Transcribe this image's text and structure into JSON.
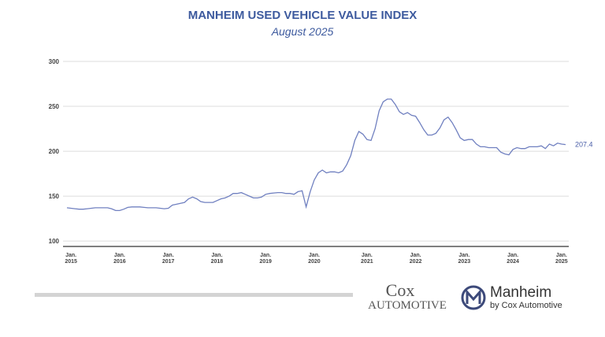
{
  "chart_data": {
    "type": "line",
    "title": "MANHEIM USED VEHICLE VALUE INDEX",
    "subtitle": "August 2025",
    "color": "#7080c0",
    "grid": true,
    "categories": [
      null,
      "Jan. 2015",
      null,
      null,
      null,
      null,
      null,
      null,
      null,
      null,
      null,
      null,
      null,
      "Jan. 2016",
      null,
      null,
      null,
      null,
      null,
      null,
      null,
      null,
      null,
      null,
      null,
      "Jan. 2017",
      null,
      null,
      null,
      null,
      null,
      null,
      null,
      null,
      null,
      null,
      null,
      "Jan. 2018",
      null,
      null,
      null,
      null,
      null,
      null,
      null,
      null,
      null,
      null,
      null,
      "Jan. 2019",
      null,
      null,
      null,
      null,
      null,
      null,
      null,
      null,
      null,
      null,
      null,
      "Jan. 2020",
      null,
      null,
      null,
      null,
      null,
      null,
      null,
      null,
      null,
      null,
      null,
      null,
      "Jan. 2021",
      null,
      null,
      null,
      null,
      null,
      null,
      null,
      null,
      null,
      null,
      null,
      "Jan. 2022",
      null,
      null,
      null,
      null,
      null,
      null,
      null,
      null,
      null,
      null,
      null,
      "Jan. 2023",
      null,
      null,
      null,
      null,
      null,
      null,
      null,
      null,
      null,
      null,
      null,
      "Jan. 2024",
      null,
      null,
      null,
      null,
      null,
      null,
      null,
      null,
      null,
      null,
      null,
      "Jan. 2025",
      null
    ],
    "values": [
      137,
      136.5,
      136,
      135.5,
      135.5,
      136,
      136.5,
      137,
      137,
      137,
      137,
      136,
      134,
      134,
      135.5,
      137.5,
      138,
      138,
      138,
      137.5,
      137,
      137,
      137,
      136.5,
      136,
      136.5,
      140,
      141,
      142,
      143,
      147,
      149,
      147,
      144,
      143,
      143,
      143,
      145,
      147,
      148,
      150,
      153,
      153,
      154,
      152,
      150,
      148,
      148,
      149,
      152,
      153,
      153.5,
      154,
      154,
      153,
      153,
      152,
      155,
      156,
      138,
      155,
      168,
      176,
      179,
      176,
      177,
      177,
      176,
      178,
      185,
      195,
      212,
      222,
      219,
      213,
      212,
      225,
      245,
      255,
      258,
      258,
      252,
      244,
      241,
      243,
      240,
      239,
      232,
      224,
      218,
      218,
      220,
      226,
      235,
      238,
      232,
      224,
      215,
      212,
      213,
      213,
      208,
      205,
      205,
      204,
      204,
      204,
      199,
      197,
      196,
      202,
      204,
      203,
      203,
      205,
      205,
      205,
      206,
      203,
      208,
      206,
      209,
      208,
      207.4
    ],
    "ylim": [
      94,
      300
    ],
    "yticks": [
      100,
      150,
      200,
      250,
      300
    ]
  },
  "footer": {
    "brand1_top": "Cox",
    "brand1_bottom": "Automotive",
    "brand2_name": "Manheim",
    "brand2_sub": "by Cox Automotive"
  }
}
